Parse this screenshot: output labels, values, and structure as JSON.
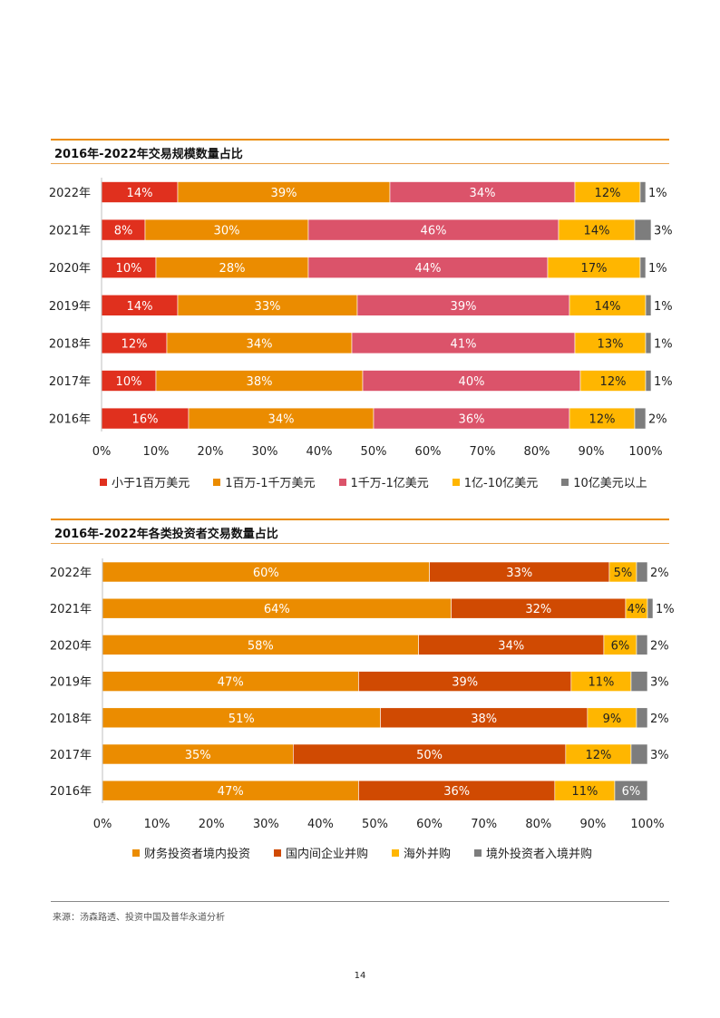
{
  "colors": {
    "accent": "#eb8c00",
    "red": "#e0301e",
    "orange": "#eb8c00",
    "rose": "#db536a",
    "yellow": "#ffb600",
    "grey": "#7d7d7d",
    "rust": "#d04a02"
  },
  "chart_data": [
    {
      "type": "bar",
      "orientation": "horizontal",
      "stacked": true,
      "title": "2016年-2022年交易规模数量占比",
      "categories": [
        "2022年",
        "2021年",
        "2020年",
        "2019年",
        "2018年",
        "2017年",
        "2016年"
      ],
      "series": [
        {
          "name": "小于1百万美元",
          "color": "#e0301e",
          "values": [
            14,
            8,
            10,
            14,
            12,
            10,
            16
          ]
        },
        {
          "name": "1百万-1千万美元",
          "color": "#eb8c00",
          "values": [
            39,
            30,
            28,
            33,
            34,
            38,
            34
          ]
        },
        {
          "name": "1千万-1亿美元",
          "color": "#db536a",
          "values": [
            34,
            46,
            44,
            39,
            41,
            40,
            36
          ]
        },
        {
          "name": "1亿-10亿美元",
          "color": "#ffb600",
          "values": [
            12,
            14,
            17,
            14,
            13,
            12,
            12
          ]
        },
        {
          "name": "10亿美元以上",
          "color": "#7d7d7d",
          "values": [
            1,
            3,
            1,
            1,
            1,
            1,
            2
          ]
        }
      ],
      "xlim": [
        0,
        100
      ],
      "xticks": [
        "0%",
        "10%",
        "20%",
        "30%",
        "40%",
        "50%",
        "60%",
        "70%",
        "80%",
        "90%",
        "100%"
      ],
      "value_suffix": "%",
      "legend_position": "bottom",
      "grid": false
    },
    {
      "type": "bar",
      "orientation": "horizontal",
      "stacked": true,
      "title": "2016年-2022年各类投资者交易数量占比",
      "categories": [
        "2022年",
        "2021年",
        "2020年",
        "2019年",
        "2018年",
        "2017年",
        "2016年"
      ],
      "series": [
        {
          "name": "财务投资者境内投资",
          "color": "#eb8c00",
          "values": [
            60,
            64,
            58,
            47,
            51,
            35,
            47
          ]
        },
        {
          "name": "国内间企业并购",
          "color": "#d04a02",
          "values": [
            33,
            32,
            34,
            39,
            38,
            50,
            36
          ]
        },
        {
          "name": "海外并购",
          "color": "#ffb600",
          "values": [
            5,
            4,
            6,
            11,
            9,
            12,
            11
          ]
        },
        {
          "name": "境外投资者入境并购",
          "color": "#7d7d7d",
          "values": [
            2,
            1,
            2,
            3,
            2,
            3,
            6
          ]
        }
      ],
      "xlim": [
        0,
        100
      ],
      "xticks": [
        "0%",
        "10%",
        "20%",
        "30%",
        "40%",
        "50%",
        "60%",
        "70%",
        "80%",
        "90%",
        "100%"
      ],
      "value_suffix": "%",
      "legend_position": "bottom",
      "grid": false
    }
  ],
  "source": "来源：汤森路透、投资中国及普华永道分析",
  "page_number": "14"
}
